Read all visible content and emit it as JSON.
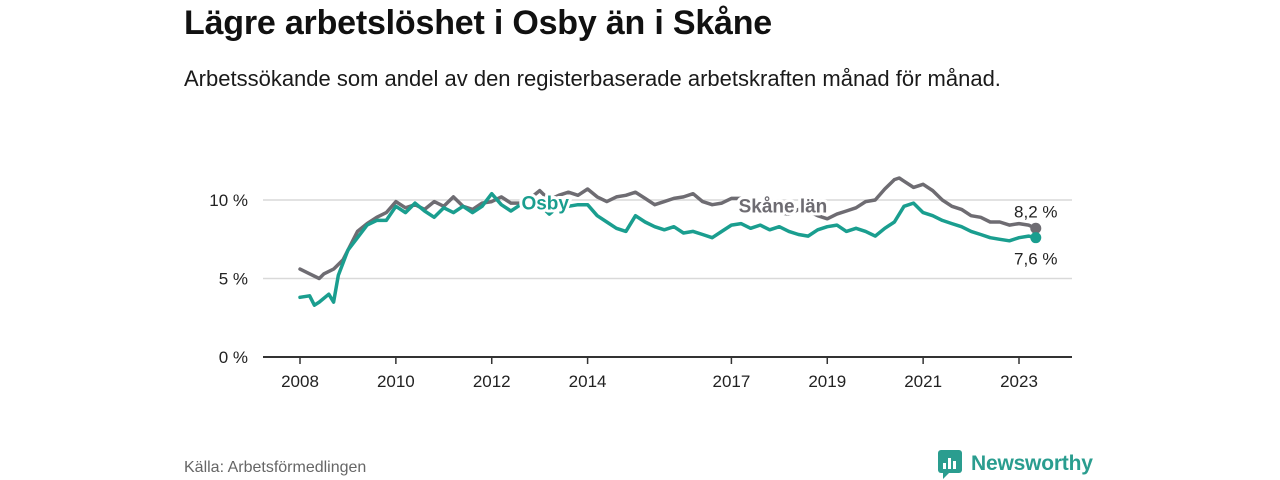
{
  "title": "Lägre arbetslöshet i Osby än i Skåne",
  "subtitle": "Arbetssökande som andel av den registerbaserade arbetskraften månad för månad.",
  "source": "Källa: Arbetsförmedlingen",
  "brand": "Newsworthy",
  "colors": {
    "osby": "#1a9e8f",
    "skane": "#6e6c72",
    "axis": "#333333",
    "grid": "#d9d9d9",
    "brand": "#2a9d8f"
  },
  "chart_data": {
    "type": "line",
    "xlim": [
      2008,
      2023.5
    ],
    "ylim": [
      0,
      10
    ],
    "yticks": [
      0,
      5,
      10
    ],
    "ytick_labels": [
      "0 %",
      "5 %",
      "10 %"
    ],
    "xticks": [
      2008,
      2010,
      2012,
      2014,
      2017,
      2019,
      2021,
      2023
    ],
    "xtick_labels": [
      "2008",
      "2010",
      "2012",
      "2014",
      "2017",
      "2019",
      "2021",
      "2023"
    ],
    "series": [
      {
        "name": "Skåne län",
        "label": "Skåne län",
        "end_label": "8,2 %",
        "x": [
          2008.0,
          2008.2,
          2008.4,
          2008.5,
          2008.7,
          2008.9,
          2009.1,
          2009.2,
          2009.4,
          2009.6,
          2009.8,
          2010.0,
          2010.2,
          2010.4,
          2010.6,
          2010.8,
          2011.0,
          2011.2,
          2011.4,
          2011.6,
          2011.8,
          2012.0,
          2012.2,
          2012.4,
          2012.6,
          2012.8,
          2013.0,
          2013.2,
          2013.4,
          2013.6,
          2013.8,
          2014.0,
          2014.2,
          2014.4,
          2014.6,
          2014.8,
          2015.0,
          2015.2,
          2015.4,
          2015.6,
          2015.8,
          2016.0,
          2016.2,
          2016.4,
          2016.6,
          2016.8,
          2017.0,
          2017.2,
          2017.4,
          2017.6,
          2017.8,
          2018.0,
          2018.2,
          2018.4,
          2018.6,
          2018.8,
          2019.0,
          2019.2,
          2019.4,
          2019.6,
          2019.8,
          2020.0,
          2020.2,
          2020.4,
          2020.5,
          2020.6,
          2020.8,
          2021.0,
          2021.2,
          2021.4,
          2021.6,
          2021.8,
          2022.0,
          2022.2,
          2022.4,
          2022.6,
          2022.8,
          2023.0,
          2023.2,
          2023.35
        ],
        "values": [
          5.6,
          5.3,
          5.0,
          5.3,
          5.6,
          6.2,
          7.4,
          8.0,
          8.5,
          8.9,
          9.2,
          9.9,
          9.5,
          9.7,
          9.4,
          9.9,
          9.6,
          10.2,
          9.6,
          9.4,
          9.8,
          9.9,
          10.2,
          9.8,
          9.8,
          10.1,
          10.6,
          10.0,
          10.3,
          10.5,
          10.3,
          10.7,
          10.2,
          9.9,
          10.2,
          10.3,
          10.5,
          10.1,
          9.7,
          9.9,
          10.1,
          10.2,
          10.4,
          9.9,
          9.7,
          9.8,
          10.1,
          10.1,
          10.0,
          9.3,
          9.5,
          9.2,
          9.1,
          9.4,
          9.3,
          9.0,
          8.8,
          9.1,
          9.3,
          9.5,
          9.9,
          10.0,
          10.7,
          11.3,
          11.4,
          11.2,
          10.8,
          11.0,
          10.6,
          10.0,
          9.6,
          9.4,
          9.0,
          8.9,
          8.6,
          8.6,
          8.4,
          8.5,
          8.4,
          8.2
        ]
      },
      {
        "name": "Osby",
        "label": "Osby",
        "end_label": "7,6 %",
        "x": [
          2008.0,
          2008.2,
          2008.3,
          2008.4,
          2008.6,
          2008.7,
          2008.8,
          2009.0,
          2009.2,
          2009.4,
          2009.6,
          2009.8,
          2010.0,
          2010.2,
          2010.4,
          2010.6,
          2010.8,
          2011.0,
          2011.2,
          2011.4,
          2011.6,
          2011.8,
          2012.0,
          2012.2,
          2012.4,
          2012.6,
          2012.8,
          2013.0,
          2013.2,
          2013.4,
          2013.6,
          2013.8,
          2014.0,
          2014.2,
          2014.4,
          2014.6,
          2014.8,
          2015.0,
          2015.2,
          2015.4,
          2015.6,
          2015.8,
          2016.0,
          2016.2,
          2016.4,
          2016.6,
          2016.8,
          2017.0,
          2017.2,
          2017.4,
          2017.6,
          2017.8,
          2018.0,
          2018.2,
          2018.4,
          2018.6,
          2018.8,
          2019.0,
          2019.2,
          2019.4,
          2019.6,
          2019.8,
          2020.0,
          2020.2,
          2020.4,
          2020.6,
          2020.8,
          2021.0,
          2021.2,
          2021.4,
          2021.6,
          2021.8,
          2022.0,
          2022.2,
          2022.4,
          2022.6,
          2022.8,
          2023.0,
          2023.2,
          2023.35
        ],
        "values": [
          3.8,
          3.9,
          3.3,
          3.5,
          4.0,
          3.5,
          5.2,
          6.8,
          7.6,
          8.4,
          8.7,
          8.7,
          9.6,
          9.2,
          9.8,
          9.3,
          8.9,
          9.5,
          9.2,
          9.6,
          9.2,
          9.6,
          10.4,
          9.7,
          9.3,
          9.7,
          9.5,
          9.7,
          9.1,
          9.6,
          9.6,
          9.7,
          9.7,
          9.0,
          8.6,
          8.2,
          8.0,
          9.0,
          8.6,
          8.3,
          8.1,
          8.3,
          7.9,
          8.0,
          7.8,
          7.6,
          8.0,
          8.4,
          8.5,
          8.2,
          8.4,
          8.1,
          8.3,
          8.0,
          7.8,
          7.7,
          8.1,
          8.3,
          8.4,
          8.0,
          8.2,
          8.0,
          7.7,
          8.2,
          8.6,
          9.6,
          9.8,
          9.2,
          9.0,
          8.7,
          8.5,
          8.3,
          8.0,
          7.8,
          7.6,
          7.5,
          7.4,
          7.6,
          7.7,
          7.6
        ]
      }
    ]
  }
}
